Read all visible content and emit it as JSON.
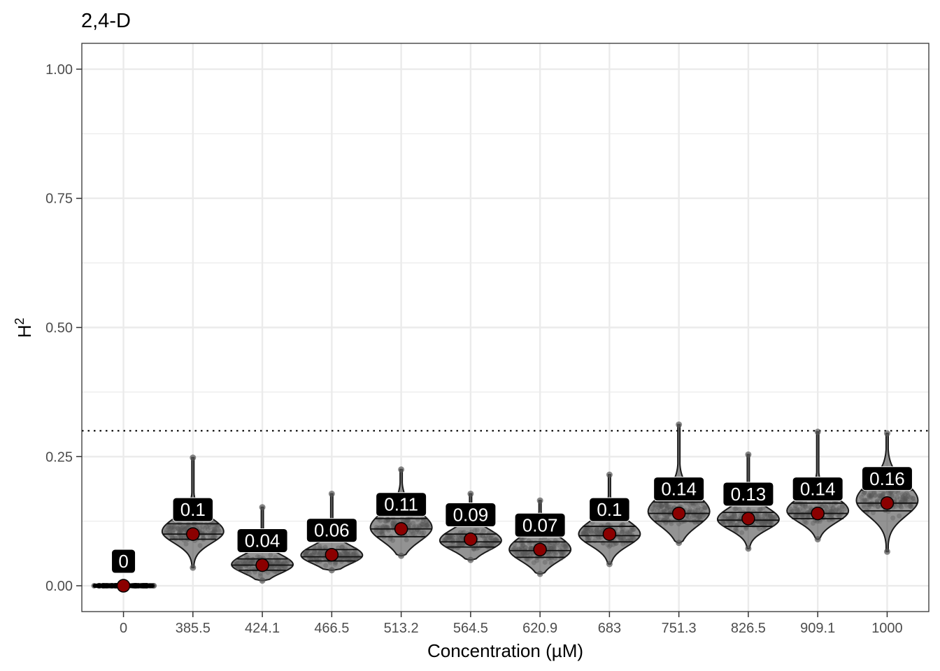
{
  "chart_data": {
    "type": "violin",
    "title": "2,4-D",
    "xlabel": "Concentration (µM)",
    "ylabel": "H",
    "ylabel_superscript": "2",
    "categories": [
      "0",
      "385.5",
      "424.1",
      "466.5",
      "513.2",
      "564.5",
      "620.9",
      "683",
      "751.3",
      "826.5",
      "909.1",
      "1000"
    ],
    "mean_values": [
      0,
      0.1,
      0.04,
      0.06,
      0.11,
      0.09,
      0.07,
      0.1,
      0.14,
      0.13,
      0.14,
      0.16
    ],
    "mean_labels": [
      "0",
      "0.1",
      "0.04",
      "0.06",
      "0.11",
      "0.09",
      "0.07",
      "0.1",
      "0.14",
      "0.13",
      "0.14",
      "0.16"
    ],
    "distributions": [
      {
        "min": 0.0,
        "max": 0.0,
        "q25": 0.0,
        "q50": 0.0,
        "q75": 0.0
      },
      {
        "min": 0.035,
        "max": 0.248,
        "q25": 0.09,
        "q50": 0.1,
        "q75": 0.12
      },
      {
        "min": 0.01,
        "max": 0.152,
        "q25": 0.03,
        "q50": 0.04,
        "q75": 0.052
      },
      {
        "min": 0.03,
        "max": 0.178,
        "q25": 0.048,
        "q50": 0.056,
        "q75": 0.07
      },
      {
        "min": 0.058,
        "max": 0.225,
        "q25": 0.095,
        "q50": 0.11,
        "q75": 0.13
      },
      {
        "min": 0.05,
        "max": 0.178,
        "q25": 0.075,
        "q50": 0.085,
        "q75": 0.1
      },
      {
        "min": 0.023,
        "max": 0.165,
        "q25": 0.055,
        "q50": 0.068,
        "q75": 0.085
      },
      {
        "min": 0.042,
        "max": 0.215,
        "q25": 0.085,
        "q50": 0.097,
        "q75": 0.115
      },
      {
        "min": 0.083,
        "max": 0.312,
        "q25": 0.125,
        "q50": 0.14,
        "q75": 0.162
      },
      {
        "min": 0.072,
        "max": 0.254,
        "q25": 0.115,
        "q50": 0.127,
        "q75": 0.142
      },
      {
        "min": 0.09,
        "max": 0.298,
        "q25": 0.13,
        "q50": 0.14,
        "q75": 0.16
      },
      {
        "min": 0.066,
        "max": 0.295,
        "q25": 0.145,
        "q50": 0.16,
        "q75": 0.185
      }
    ],
    "ylim": [
      -0.05,
      1.05
    ],
    "yticks": [
      0.0,
      0.25,
      0.5,
      0.75,
      1.0
    ],
    "ytick_labels": [
      "0.00",
      "0.25",
      "0.50",
      "0.75",
      "1.00"
    ],
    "reference_line": 0.3,
    "grid": true,
    "colors": {
      "violin_fill": "#3a3a3a",
      "point": "#555555",
      "mean_point": "#8b0000",
      "label_box": "#000000",
      "label_text": "#ffffff",
      "grid": "#ebebeb"
    }
  }
}
